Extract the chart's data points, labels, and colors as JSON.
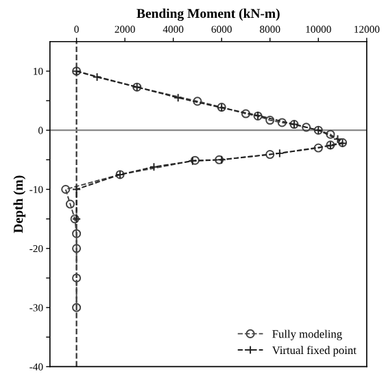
{
  "chart_data": {
    "type": "line",
    "xlabel": "Bending Moment (kN-m)",
    "ylabel": "Depth (m)",
    "xlim": [
      -1100,
      12000
    ],
    "xticks": [
      0,
      2000,
      4000,
      6000,
      8000,
      10000,
      12000
    ],
    "ylim": [
      -40,
      15
    ],
    "yticks": [
      {
        "value": 10,
        "label": "10"
      },
      {
        "value": 5,
        "label": null
      },
      0,
      {
        "value": -5,
        "label": null
      },
      -10,
      {
        "value": -15,
        "label": null
      },
      -20,
      {
        "value": -25,
        "label": null
      },
      -30,
      {
        "value": -35,
        "label": null
      },
      -40
    ],
    "legend": "bottom right",
    "grid": false,
    "ref_lines": [
      {
        "axis": "x",
        "value": 0,
        "color": "#333333",
        "line_style": "dashed"
      },
      {
        "axis": "y",
        "value": 0,
        "color": "#888888",
        "line_style": "solid"
      }
    ],
    "series": [
      {
        "name": "Fully modeling",
        "color": "#444444",
        "marker": "circle",
        "line_style": "dashed",
        "x": [
          0,
          2500,
          5000,
          6000,
          7000,
          7500,
          8000,
          8500,
          9000,
          9500,
          10000,
          10500,
          11000,
          10500,
          10000,
          8000,
          5900,
          4900,
          1800,
          -450,
          -260,
          -70,
          0,
          0,
          0,
          0
        ],
        "values": [
          10,
          7.3,
          4.9,
          3.9,
          2.8,
          2.4,
          1.7,
          1.3,
          1.0,
          0.5,
          0,
          -0.7,
          -2.1,
          -2.5,
          -3,
          -4.1,
          -5,
          -5.1,
          -7.5,
          -10,
          -12.5,
          -15,
          -17.5,
          -20,
          -25,
          -30
        ]
      },
      {
        "name": "Virtual fixed point",
        "color": "#222222",
        "marker": "cross",
        "line_style": "dashed",
        "x": [
          0,
          850,
          2500,
          4200,
          6000,
          7500,
          9000,
          10000,
          10800,
          11000,
          10500,
          8400,
          6000,
          4800,
          3200,
          1800,
          0,
          0
        ],
        "values": [
          10,
          9,
          7.3,
          5.5,
          3.8,
          2.5,
          1,
          0,
          -1.5,
          -2.2,
          -2.6,
          -3.9,
          -5,
          -5.2,
          -6.2,
          -7.5,
          -10,
          -15
        ]
      }
    ]
  }
}
